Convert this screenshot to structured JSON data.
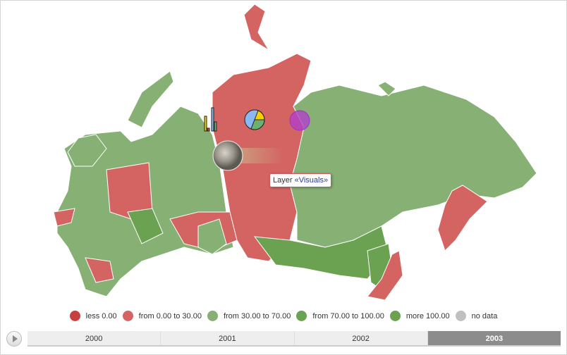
{
  "colors": {
    "less": "#c94040",
    "from0to30": "#d46462",
    "from30to70": "#86b074",
    "from70to100": "#6aa252",
    "more100": "#6aa252",
    "nodata": "#c0c0c0",
    "border": "#ffffff"
  },
  "tooltip": {
    "prefix": "Layer ",
    "name": "«Visuals»"
  },
  "legend": [
    {
      "label": "less 0.00",
      "color": "#c94040"
    },
    {
      "label": "from 0.00 to 30.00",
      "color": "#d46462"
    },
    {
      "label": "from 30.00 to 70.00",
      "color": "#86b074"
    },
    {
      "label": "from 70.00 to 100.00",
      "color": "#6aa252"
    },
    {
      "label": "more 100.00",
      "color": "#6aa252"
    },
    {
      "label": "no data",
      "color": "#c0c0c0"
    }
  ],
  "timeline": {
    "years": [
      "2000",
      "2001",
      "2002",
      "2003"
    ],
    "selected": "2003"
  },
  "visuals": [
    "bar-chart-icon",
    "pie-chart-icon",
    "moon-icon",
    "circle-marker-icon"
  ]
}
